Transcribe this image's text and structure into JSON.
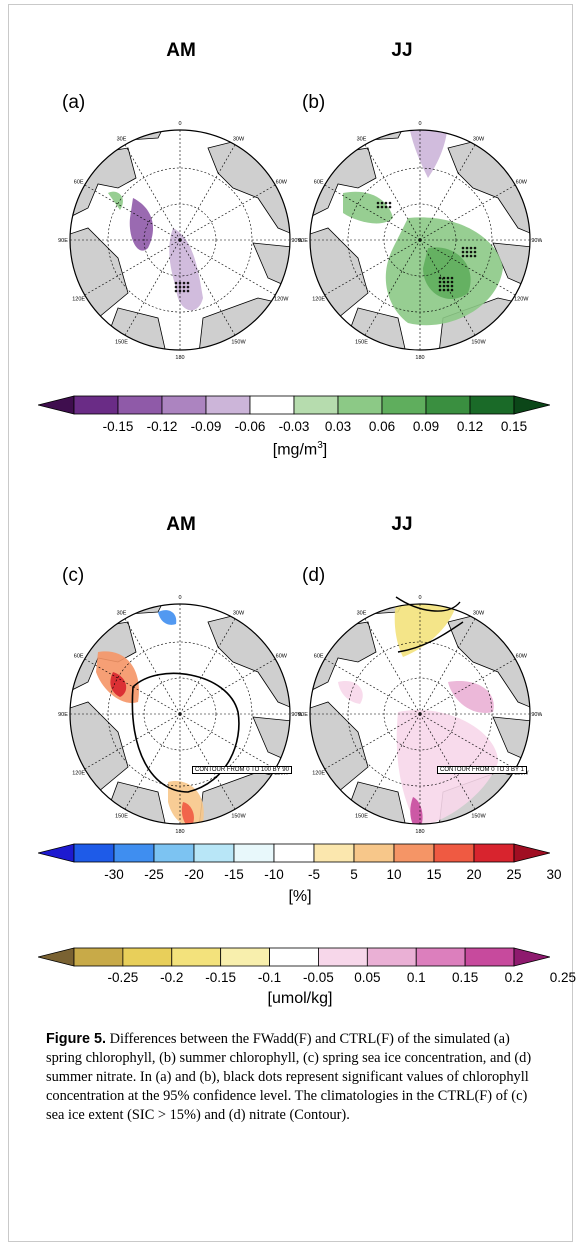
{
  "figure": {
    "top_titles": [
      "AM",
      "JJ"
    ],
    "bottom_titles": [
      "AM",
      "JJ"
    ],
    "panel_labels": [
      "(a)",
      "(b)",
      "(c)",
      "(d)"
    ],
    "longitude_labels": [
      "0",
      "30E",
      "60E",
      "90E",
      "120E",
      "150E",
      "180",
      "150W",
      "120W",
      "90W",
      "60W",
      "30W"
    ],
    "contour_notes": [
      "CONTOUR FROM 0 TO 100 BY 90",
      "CONTOUR FROM 0 TO 3 BY 1"
    ]
  },
  "colorbars": {
    "chlorophyll": {
      "ticks": [
        "-0.15",
        "-0.12",
        "-0.09",
        "-0.06",
        "-0.03",
        "0.03",
        "0.06",
        "0.09",
        "0.12",
        "0.15"
      ],
      "unit_base": "[mg/m",
      "unit_sup": "3",
      "unit_end": "]",
      "colors": [
        "#3f0e4e",
        "#6a2c86",
        "#8f5aa8",
        "#ac84c0",
        "#ccb5d9",
        "#ffffff",
        "#b6dcae",
        "#8cc986",
        "#5fae5d",
        "#3a8f40",
        "#1a6a28",
        "#0b4618"
      ]
    },
    "ice": {
      "ticks": [
        "-30",
        "-25",
        "-20",
        "-15",
        "-10",
        "-5",
        "5",
        "10",
        "15",
        "20",
        "25",
        "30"
      ],
      "unit": "[%]",
      "colors": [
        "#1d1ad0",
        "#1e5be8",
        "#3f8ef0",
        "#7cc3f2",
        "#b8e6f7",
        "#e8f8fb",
        "#ffffff",
        "#fbe7ae",
        "#f7c78a",
        "#f59566",
        "#ef5a42",
        "#d8242e",
        "#a00e22"
      ]
    },
    "nitrate": {
      "ticks": [
        "-0.25",
        "-0.2",
        "-0.15",
        "-0.1",
        "-0.05",
        "0.05",
        "0.1",
        "0.15",
        "0.2",
        "0.25"
      ],
      "unit": "[umol/kg]",
      "colors": [
        "#7a6232",
        "#c8aa48",
        "#e8cf5a",
        "#f3e27c",
        "#f8efad",
        "#ffffff",
        "#f7d7ea",
        "#eab0d5",
        "#dc7fbd",
        "#c74a9d",
        "#8e1a6e"
      ]
    }
  },
  "caption": {
    "label": "Figure 5.",
    "text": " Differences between the FWadd(F) and CTRL(F) of the simulated (a) spring chlorophyll, (b) summer chlorophyll, (c) spring sea ice concentration, and (d) summer nitrate. In (a) and (b), black dots represent significant values of chlorophyll concentration at the 95% confidence level. The climatologies in the CTRL(F) of (c) sea ice extent (SIC > 15%) and (d) nitrate (Contour)."
  }
}
